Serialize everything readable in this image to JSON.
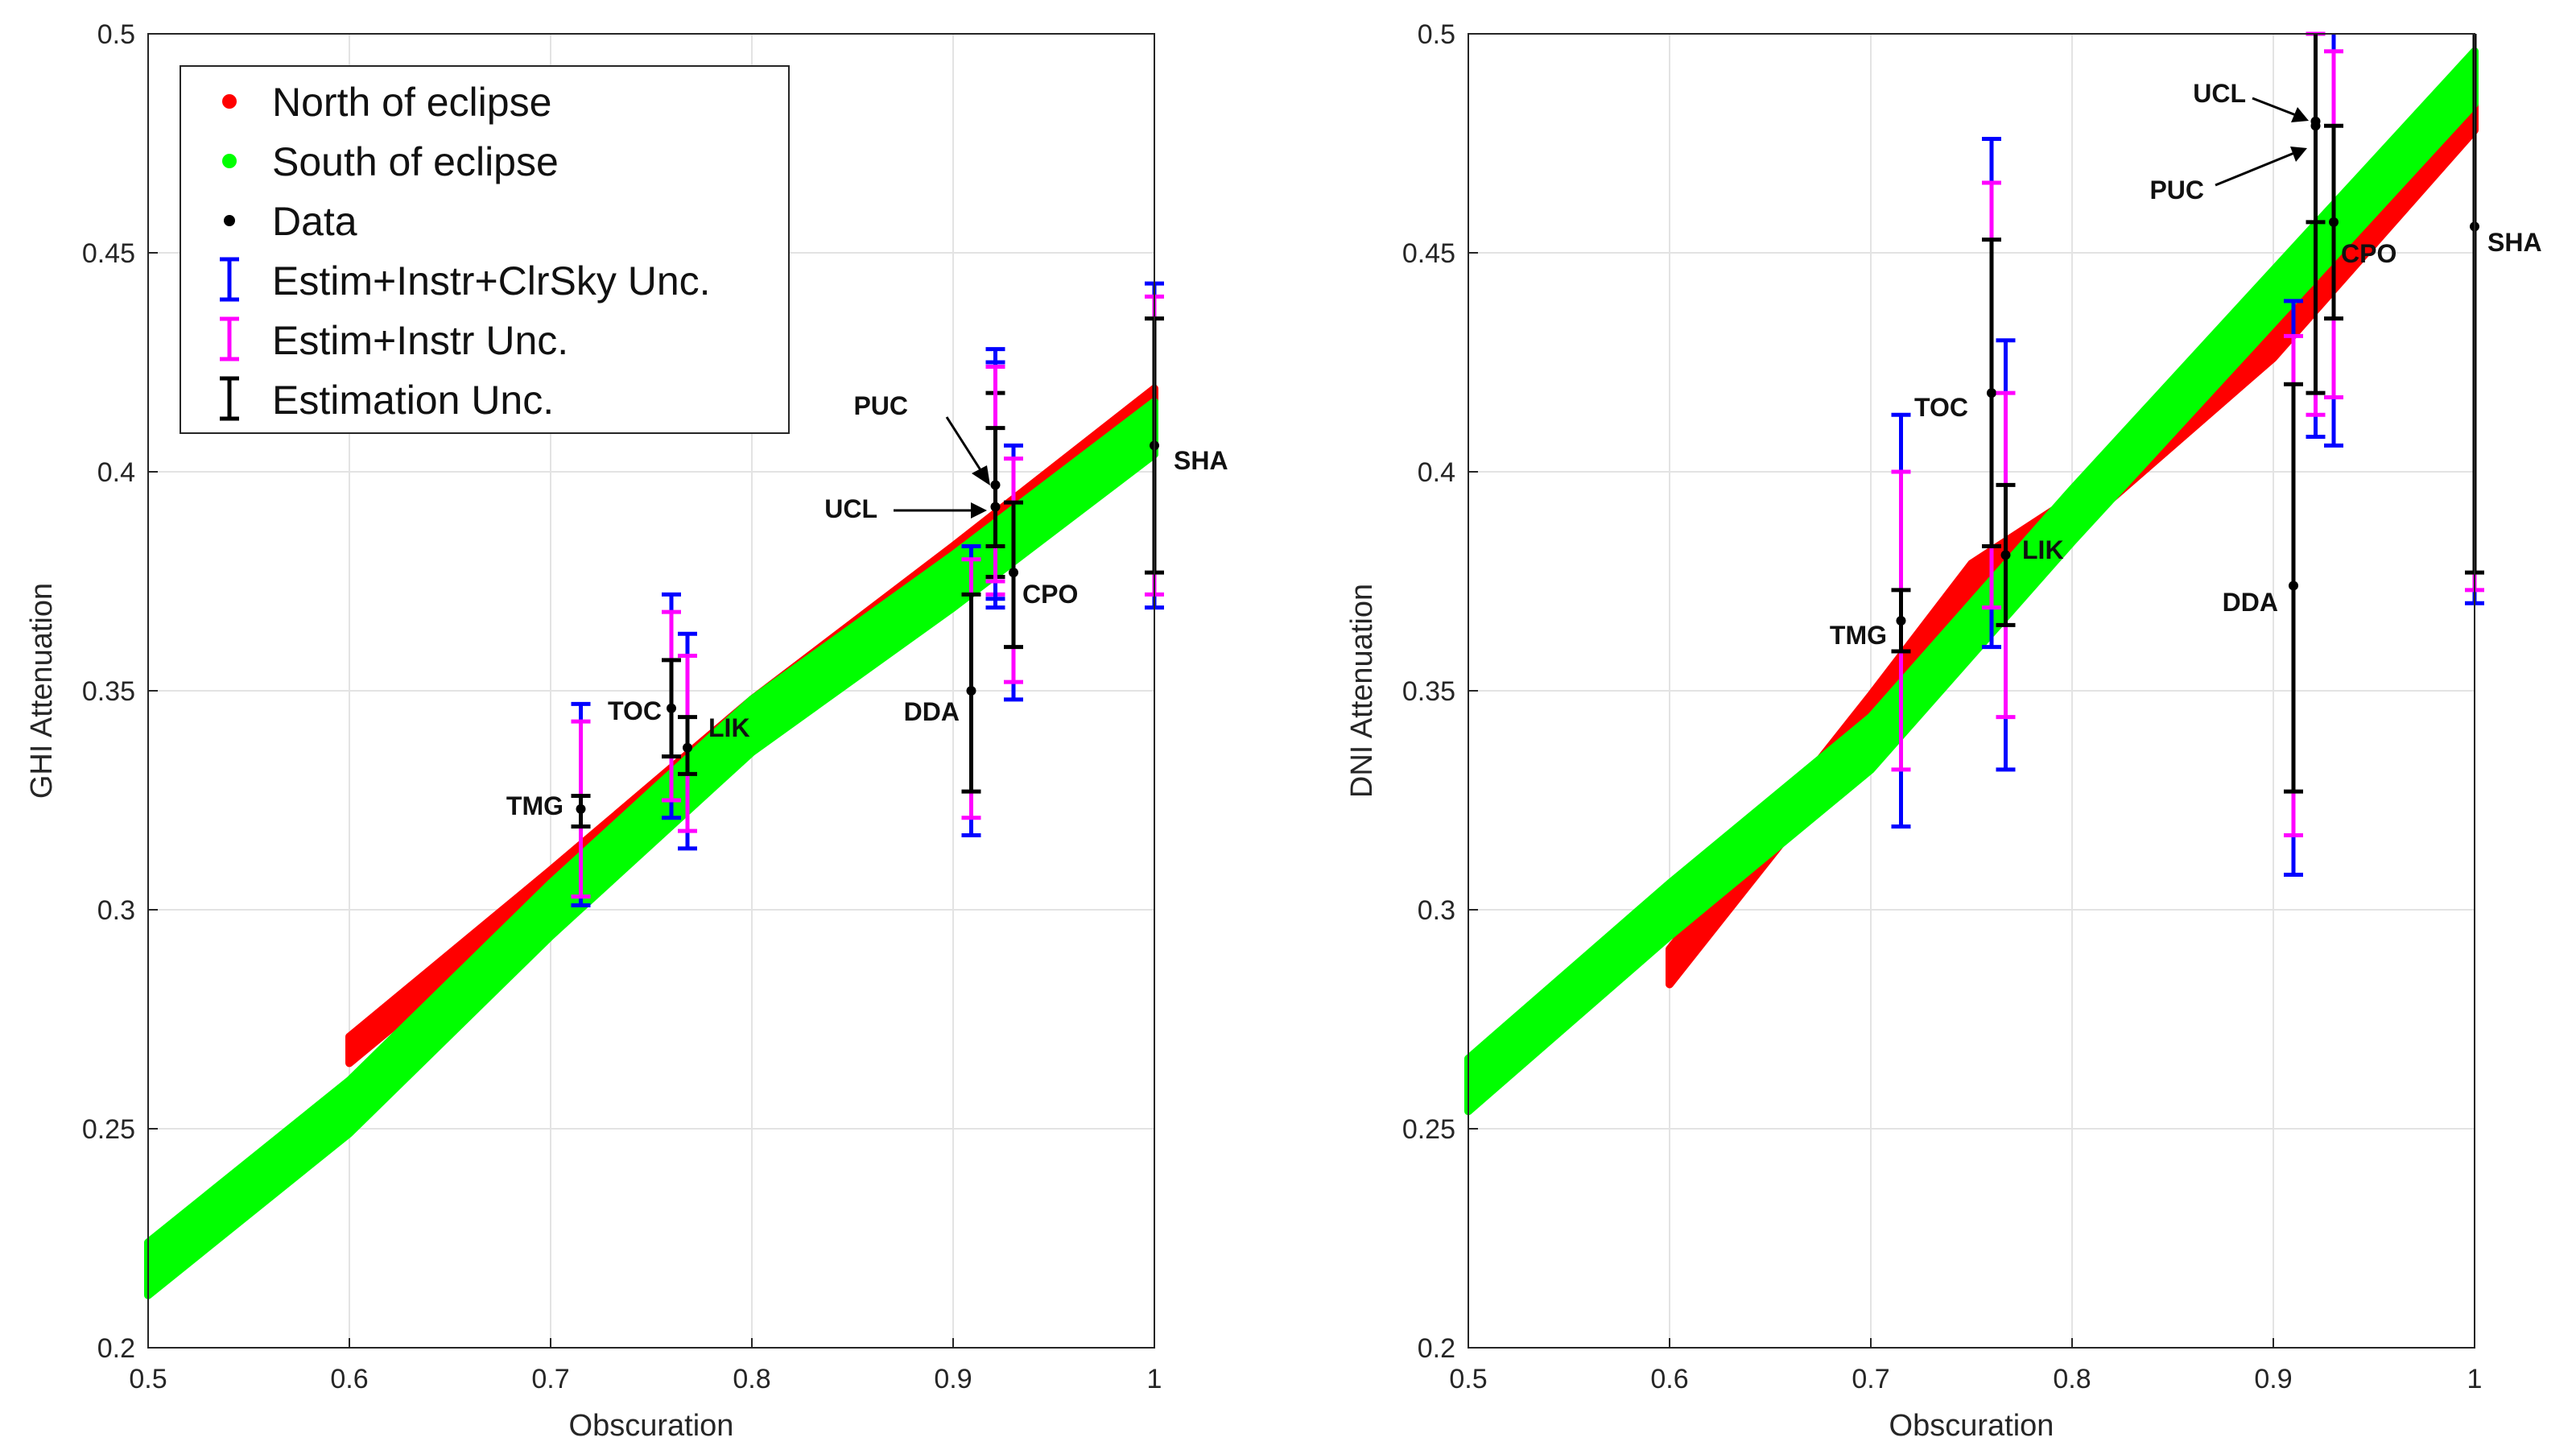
{
  "chart_data": [
    {
      "type": "scatter",
      "title": "",
      "xlabel": "Obscuration",
      "ylabel": "GHI Attenuation",
      "xlim": [
        0.5,
        1
      ],
      "ylim": [
        0.2,
        0.5
      ],
      "xticks": [
        0.5,
        0.6,
        0.7,
        0.8,
        0.9,
        1
      ],
      "yticks": [
        0.2,
        0.25,
        0.3,
        0.35,
        0.4,
        0.45,
        0.5
      ],
      "xtick_labels": [
        "0.5",
        "0.6",
        "0.7",
        "0.8",
        "0.9",
        "1"
      ],
      "ytick_labels": [
        "0.2",
        "0.25",
        "0.3",
        "0.35",
        "0.4",
        "0.45",
        "0.5"
      ],
      "grid": true,
      "legend": {
        "placement": "top-left",
        "entries": [
          "North of eclipse",
          "South of eclipse",
          "Data",
          "Estim+Instr+ClrSky Unc.",
          "Estim+Instr Unc.",
          "Estimation Unc."
        ]
      },
      "colors": {
        "north": "#ff0000",
        "south": "#00ff00",
        "data": "#000000",
        "clrsky": "#0000ff",
        "instr": "#ff00ff",
        "estim": "#000000"
      },
      "series": [
        {
          "name": "North of eclipse",
          "color": "#ff0000",
          "x": [
            0.6,
            0.7,
            0.8,
            0.9,
            1.0
          ],
          "y": [
            0.268,
            0.306,
            0.345,
            0.38,
            0.416
          ],
          "band": 0.003
        },
        {
          "name": "South of eclipse",
          "color": "#00ff00",
          "x": [
            0.5,
            0.6,
            0.7,
            0.8,
            0.9,
            1.0
          ],
          "y": [
            0.218,
            0.255,
            0.3,
            0.342,
            0.375,
            0.41
          ],
          "band": 0.006
        }
      ],
      "sites": [
        {
          "label": "TMG",
          "x": 0.715,
          "y": 0.323,
          "estim": [
            0.319,
            0.326
          ],
          "instr": [
            0.303,
            0.343
          ],
          "clrsky": [
            0.301,
            0.347
          ]
        },
        {
          "label": "TOC",
          "x": 0.76,
          "y": 0.346,
          "estim": [
            0.335,
            0.357
          ],
          "instr": [
            0.325,
            0.368
          ],
          "clrsky": [
            0.321,
            0.372
          ]
        },
        {
          "label": "LIK",
          "x": 0.768,
          "y": 0.337,
          "estim": [
            0.331,
            0.344
          ],
          "instr": [
            0.318,
            0.358
          ],
          "clrsky": [
            0.314,
            0.363
          ]
        },
        {
          "label": "DDA",
          "x": 0.909,
          "y": 0.35,
          "estim": [
            0.327,
            0.372
          ],
          "instr": [
            0.321,
            0.38
          ],
          "clrsky": [
            0.317,
            0.383
          ]
        },
        {
          "label": "PUC",
          "x": 0.921,
          "y": 0.397,
          "estim": [
            0.376,
            0.418
          ],
          "instr": [
            0.372,
            0.424
          ],
          "clrsky": [
            0.369,
            0.428
          ]
        },
        {
          "label": "UCL",
          "x": 0.921,
          "y": 0.392,
          "estim": [
            0.383,
            0.41
          ],
          "instr": [
            0.375,
            0.424
          ],
          "clrsky": [
            0.371,
            0.425
          ]
        },
        {
          "label": "CPO",
          "x": 0.93,
          "y": 0.377,
          "estim": [
            0.36,
            0.393
          ],
          "instr": [
            0.352,
            0.403
          ],
          "clrsky": [
            0.348,
            0.406
          ]
        },
        {
          "label": "SHA",
          "x": 1.0,
          "y": 0.406,
          "estim": [
            0.377,
            0.435
          ],
          "instr": [
            0.372,
            0.44
          ],
          "clrsky": [
            0.369,
            0.443
          ]
        }
      ]
    },
    {
      "type": "scatter",
      "title": "",
      "xlabel": "Obscuration",
      "ylabel": "DNI Attenuation",
      "xlim": [
        0.5,
        1
      ],
      "ylim": [
        0.2,
        0.5
      ],
      "xticks": [
        0.5,
        0.6,
        0.7,
        0.8,
        0.9,
        1
      ],
      "yticks": [
        0.2,
        0.25,
        0.3,
        0.35,
        0.4,
        0.45,
        0.5
      ],
      "xtick_labels": [
        "0.5",
        "0.6",
        "0.7",
        "0.8",
        "0.9",
        "1"
      ],
      "ytick_labels": [
        "0.2",
        "0.25",
        "0.3",
        "0.35",
        "0.4",
        "0.45",
        "0.5"
      ],
      "grid": true,
      "series": [
        {
          "name": "North of eclipse",
          "color": "#ff0000",
          "x": [
            0.6,
            0.7,
            0.75,
            0.8,
            0.9,
            1.0
          ],
          "y": [
            0.287,
            0.345,
            0.375,
            0.39,
            0.43,
            0.482
          ],
          "band": 0.004
        },
        {
          "name": "South of eclipse",
          "color": "#00ff00",
          "x": [
            0.5,
            0.6,
            0.7,
            0.8,
            0.9,
            1.0
          ],
          "y": [
            0.26,
            0.3,
            0.338,
            0.39,
            0.44,
            0.49
          ],
          "band": 0.006
        }
      ],
      "sites": [
        {
          "label": "TMG",
          "x": 0.715,
          "y": 0.366,
          "estim": [
            0.359,
            0.373
          ],
          "instr": [
            0.332,
            0.4
          ],
          "clrsky": [
            0.319,
            0.413
          ]
        },
        {
          "label": "TOC",
          "x": 0.76,
          "y": 0.418,
          "estim": [
            0.383,
            0.453
          ],
          "instr": [
            0.369,
            0.466
          ],
          "clrsky": [
            0.36,
            0.476
          ]
        },
        {
          "label": "LIK",
          "x": 0.767,
          "y": 0.381,
          "estim": [
            0.365,
            0.397
          ],
          "instr": [
            0.344,
            0.418
          ],
          "clrsky": [
            0.332,
            0.43
          ]
        },
        {
          "label": "DDA",
          "x": 0.91,
          "y": 0.374,
          "estim": [
            0.327,
            0.42
          ],
          "instr": [
            0.317,
            0.431
          ],
          "clrsky": [
            0.308,
            0.439
          ]
        },
        {
          "label": "UCL",
          "x": 0.921,
          "y": 0.479,
          "estim": [
            0.457,
            0.5
          ],
          "instr": [
            0.5,
            0.5
          ],
          "clrsky": [
            0.5,
            0.5
          ]
        },
        {
          "label": "PUC",
          "x": 0.921,
          "y": 0.48,
          "estim": [
            0.418,
            0.5
          ],
          "instr": [
            0.413,
            0.5
          ],
          "clrsky": [
            0.408,
            0.5
          ]
        },
        {
          "label": "CPO",
          "x": 0.93,
          "y": 0.457,
          "estim": [
            0.435,
            0.479
          ],
          "instr": [
            0.417,
            0.496
          ],
          "clrsky": [
            0.406,
            0.5
          ]
        },
        {
          "label": "SHA",
          "x": 1.0,
          "y": 0.456,
          "estim": [
            0.377,
            0.5
          ],
          "instr": [
            0.373,
            0.5
          ],
          "clrsky": [
            0.37,
            0.5
          ]
        }
      ]
    }
  ]
}
